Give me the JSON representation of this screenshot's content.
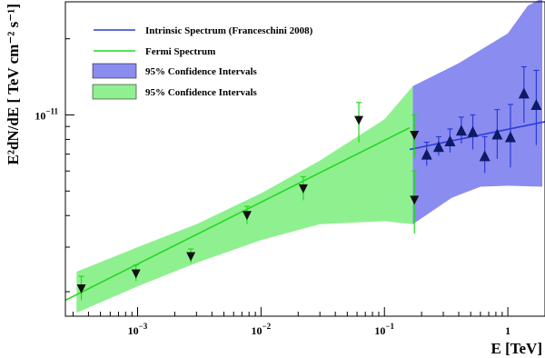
{
  "chart_data": {
    "type": "scatter",
    "x_scale": "log",
    "y_scale": "log",
    "xlabel": "E [TeV]",
    "ylabel": "E²dN/dE [ TeV cm⁻² s⁻¹]",
    "xlim": [
      0.00026,
      2.0
    ],
    "ylim": [
      1.6e-12,
      2.8e-11
    ],
    "x_ticks": [
      {
        "value": 0.001,
        "base": "10",
        "exp": "−3"
      },
      {
        "value": 0.01,
        "base": "10",
        "exp": "−2"
      },
      {
        "value": 0.1,
        "base": "10",
        "exp": "−1"
      },
      {
        "value": 1,
        "base": "1",
        "exp": ""
      }
    ],
    "y_ticks": [
      {
        "value": 1e-11,
        "base": "10",
        "exp": "−11"
      }
    ],
    "legend_position": "top-left",
    "legend": [
      {
        "label": "Intrinsic Spectrum (Franceschini 2008)",
        "kind": "line",
        "color": "#2b3bd6"
      },
      {
        "label": "Fermi Spectrum",
        "kind": "line",
        "color": "#22d822"
      },
      {
        "label": "95% Confidence Intervals",
        "kind": "box",
        "color": "#8a8cf0"
      },
      {
        "label": "95% Confidence Intervals",
        "kind": "box",
        "color": "#8ff08f"
      }
    ],
    "colors": {
      "fermi": "#22d822",
      "fermi_band": "#8ff08f",
      "intrinsic": "#2b3bd6",
      "intrinsic_band": "#8a8cf0",
      "fermi_marker": "#111111",
      "hess_marker": "#0d1a66"
    },
    "fermi_points": [
      {
        "x": 0.00035,
        "y": 2.05e-12,
        "ylo": 1.85e-12,
        "yhi": 2.3e-12
      },
      {
        "x": 0.00097,
        "y": 2.35e-12,
        "ylo": 2.2e-12,
        "yhi": 2.55e-12
      },
      {
        "x": 0.0027,
        "y": 2.75e-12,
        "ylo": 2.6e-12,
        "yhi": 2.95e-12
      },
      {
        "x": 0.0077,
        "y": 4e-12,
        "ylo": 3.7e-12,
        "yhi": 4.35e-12
      },
      {
        "x": 0.022,
        "y": 5.1e-12,
        "ylo": 4.6e-12,
        "yhi": 5.7e-12
      },
      {
        "x": 0.062,
        "y": 9.5e-12,
        "ylo": 7.8e-12,
        "yhi": 1.12e-11
      },
      {
        "x": 0.175,
        "y": 4.6e-12,
        "ylo": 3.4e-12,
        "yhi": 6e-12
      },
      {
        "x": 0.175,
        "y": 8.3e-12,
        "ylo": 6.8e-12,
        "yhi": 1e-11
      }
    ],
    "hess_points": [
      {
        "x": 0.22,
        "y": 7e-12,
        "ylo": 6.3e-12,
        "yhi": 7.8e-12
      },
      {
        "x": 0.275,
        "y": 7.5e-12,
        "ylo": 6.9e-12,
        "yhi": 8.2e-12
      },
      {
        "x": 0.34,
        "y": 7.9e-12,
        "ylo": 7.1e-12,
        "yhi": 8.8e-12
      },
      {
        "x": 0.42,
        "y": 8.7e-12,
        "ylo": 7.7e-12,
        "yhi": 9.8e-12
      },
      {
        "x": 0.52,
        "y": 8.6e-12,
        "ylo": 7.3e-12,
        "yhi": 1e-11
      },
      {
        "x": 0.65,
        "y": 6.9e-12,
        "ylo": 5.9e-12,
        "yhi": 8.2e-12
      },
      {
        "x": 0.82,
        "y": 8.4e-12,
        "ylo": 6.7e-12,
        "yhi": 1.05e-11
      },
      {
        "x": 1.05,
        "y": 8.2e-12,
        "ylo": 6.2e-12,
        "yhi": 1.1e-11
      },
      {
        "x": 1.35,
        "y": 1.22e-11,
        "ylo": 9.3e-12,
        "yhi": 1.55e-11
      },
      {
        "x": 1.7,
        "y": 1.1e-11,
        "ylo": 7.6e-12,
        "yhi": 1.5e-11
      }
    ],
    "fermi_fit": {
      "x": [
        0.00026,
        0.16
      ],
      "y": [
        1.85e-12,
        8.9e-12
      ]
    },
    "intrinsic_fit": {
      "x": [
        0.16,
        2.0
      ],
      "y": [
        7.3e-12,
        9.4e-12
      ]
    },
    "fermi_band_upper": [
      {
        "x": 0.00032,
        "y": 2.4e-12
      },
      {
        "x": 0.001,
        "y": 3e-12
      },
      {
        "x": 0.003,
        "y": 3.7e-12
      },
      {
        "x": 0.01,
        "y": 4.9e-12
      },
      {
        "x": 0.03,
        "y": 6.6e-12
      },
      {
        "x": 0.1,
        "y": 9.6e-12
      },
      {
        "x": 0.17,
        "y": 1.3e-11
      }
    ],
    "fermi_band_lower": [
      {
        "x": 0.00032,
        "y": 1.65e-12
      },
      {
        "x": 0.001,
        "y": 2.1e-12
      },
      {
        "x": 0.003,
        "y": 2.6e-12
      },
      {
        "x": 0.01,
        "y": 3.2e-12
      },
      {
        "x": 0.03,
        "y": 3.7e-12
      },
      {
        "x": 0.1,
        "y": 3.8e-12
      },
      {
        "x": 0.17,
        "y": 3.7e-12
      }
    ],
    "intrinsic_band_upper": [
      {
        "x": 0.17,
        "y": 1.3e-11
      },
      {
        "x": 0.4,
        "y": 1.6e-11
      },
      {
        "x": 1.0,
        "y": 2.1e-11
      },
      {
        "x": 1.45,
        "y": 2.7e-11
      },
      {
        "x": 1.9,
        "y": 2.9e-11
      }
    ],
    "intrinsic_band_lower": [
      {
        "x": 0.17,
        "y": 3.7e-12
      },
      {
        "x": 0.35,
        "y": 4.7e-12
      },
      {
        "x": 0.6,
        "y": 5.2e-12
      },
      {
        "x": 1.0,
        "y": 5.25e-12
      },
      {
        "x": 1.9,
        "y": 5.2e-12
      }
    ]
  }
}
